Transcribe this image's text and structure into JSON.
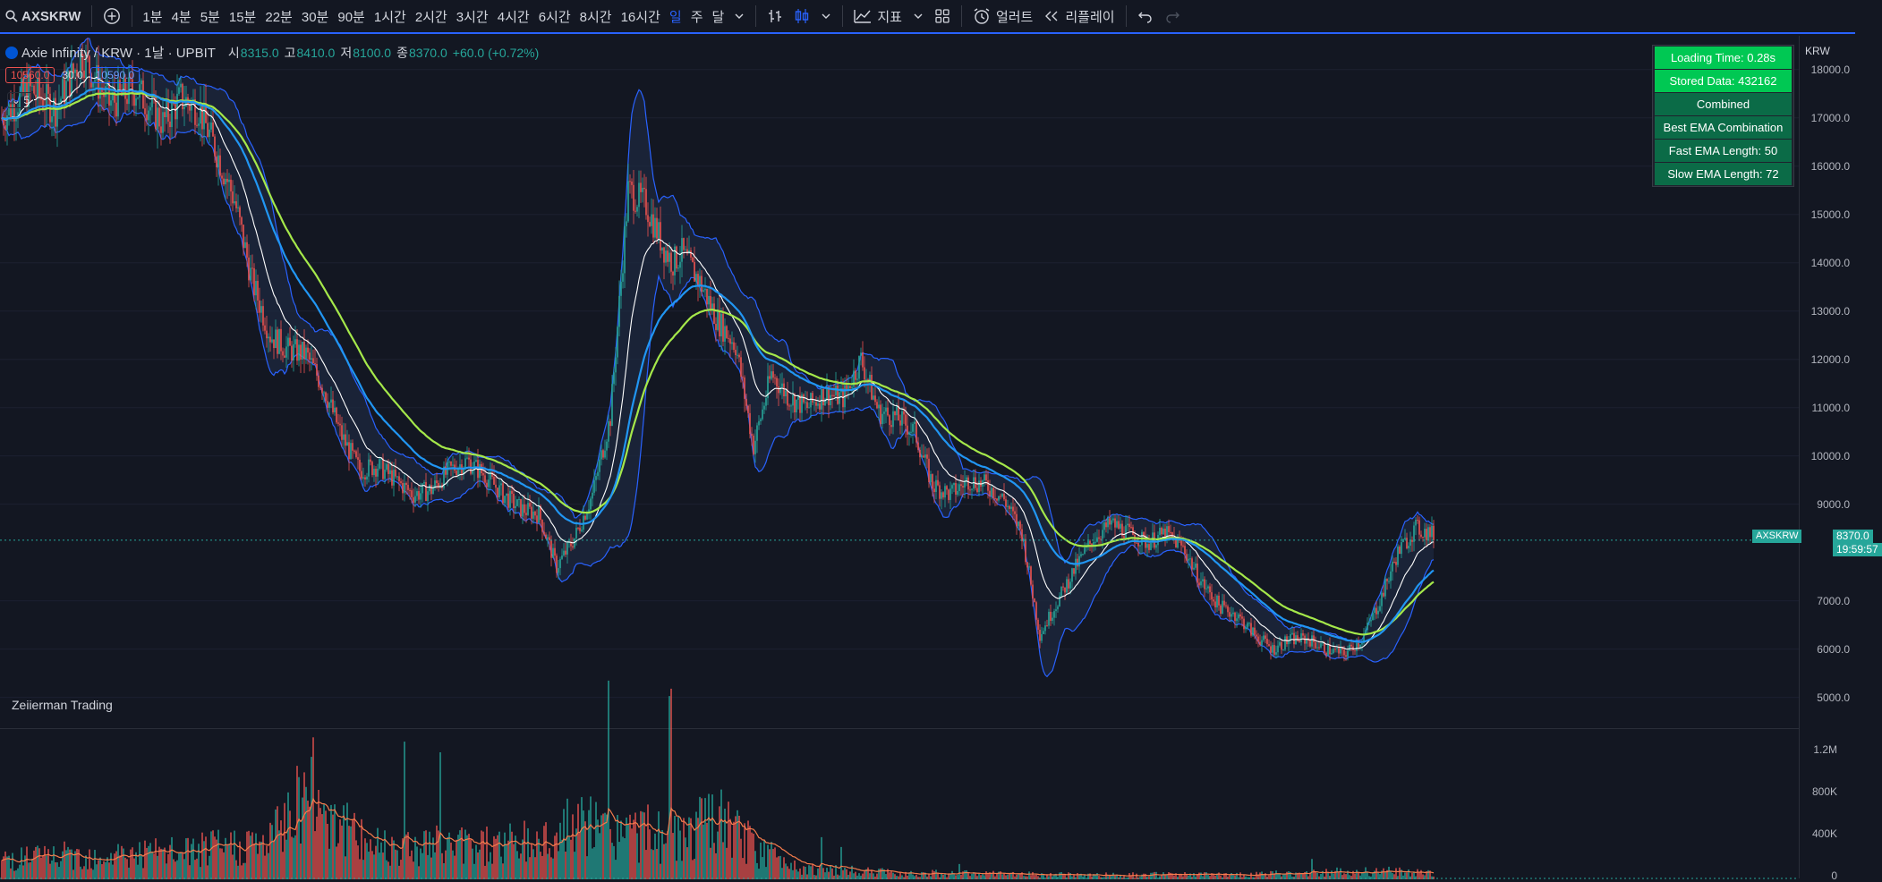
{
  "toolbar": {
    "symbol": "AXSKRW",
    "intervals": [
      "1분",
      "4분",
      "5분",
      "15분",
      "22분",
      "30분",
      "90분",
      "1시간",
      "2시간",
      "3시간",
      "4시간",
      "6시간",
      "8시간",
      "16시간",
      "일",
      "주",
      "달"
    ],
    "active_interval": "일",
    "indicators_label": "지표",
    "alert_label": "얼러트",
    "replay_label": "리플레이"
  },
  "legend": {
    "title": "Axie Infinity / KRW · 1날 · UPBIT",
    "open_label": "시",
    "open": "8315.0",
    "high_label": "고",
    "high": "8410.0",
    "low_label": "저",
    "low": "8100.0",
    "close_label": "종",
    "close": "8370.0",
    "change": "+60.0 (+0.72%)",
    "box1": "10560.0",
    "box_mid": "30.0",
    "box2": "10590.0",
    "collapse": "5"
  },
  "watermark": "Zeiierman Trading",
  "info_table": [
    {
      "text": "Loading Time: 0.28s",
      "color": "#00c853"
    },
    {
      "text": "Stored Data: 432162",
      "color": "#00c853"
    },
    {
      "text": "Combined",
      "color": "#0b6b47"
    },
    {
      "text": "Best EMA Combination",
      "color": "#0b6b47"
    },
    {
      "text": "Fast EMA Length: 50",
      "color": "#0b6b47"
    },
    {
      "text": "Slow EMA Length: 72",
      "color": "#0b6b47"
    }
  ],
  "price_scale": {
    "currency": "KRW",
    "labels": [
      "18000.0",
      "17000.0",
      "16000.0",
      "15000.0",
      "14000.0",
      "13000.0",
      "12000.0",
      "11000.0",
      "10000.0",
      "9000.0",
      "7000.0",
      "6000.0",
      "5000.0"
    ],
    "current_symbol": "AXSKRW",
    "current_price": "8370.0",
    "countdown": "19:59:57"
  },
  "volume_scale": {
    "labels": [
      "1.2M",
      "800K",
      "400K",
      "0"
    ]
  },
  "colors": {
    "up": "#26a69a",
    "down": "#ef5350",
    "accent": "#2962ff",
    "ema_fast": "#2196f3",
    "ema_slow": "#a5e84a",
    "basis": "#ffffff",
    "band": "#2962ff"
  },
  "chart_data": {
    "type": "candlestick",
    "y_range": [
      4400,
      18700
    ],
    "price_anchors": [
      [
        0,
        17000
      ],
      [
        15,
        17600
      ],
      [
        30,
        17200
      ],
      [
        45,
        18300
      ],
      [
        60,
        17300
      ],
      [
        75,
        17600
      ],
      [
        90,
        16900
      ],
      [
        100,
        17400
      ],
      [
        110,
        17200
      ],
      [
        120,
        16300
      ],
      [
        130,
        15300
      ],
      [
        140,
        13600
      ],
      [
        150,
        12500
      ],
      [
        160,
        12200
      ],
      [
        170,
        12100
      ],
      [
        180,
        11400
      ],
      [
        190,
        10400
      ],
      [
        200,
        9700
      ],
      [
        210,
        9800
      ],
      [
        220,
        9500
      ],
      [
        230,
        9200
      ],
      [
        240,
        9300
      ],
      [
        250,
        9700
      ],
      [
        260,
        9900
      ],
      [
        270,
        9600
      ],
      [
        280,
        9200
      ],
      [
        290,
        8900
      ],
      [
        300,
        8800
      ],
      [
        310,
        7700
      ],
      [
        320,
        8300
      ],
      [
        330,
        9200
      ],
      [
        340,
        10800
      ],
      [
        350,
        15500
      ],
      [
        360,
        15200
      ],
      [
        370,
        14300
      ],
      [
        375,
        14000
      ],
      [
        380,
        14200
      ],
      [
        390,
        13600
      ],
      [
        400,
        12800
      ],
      [
        410,
        12300
      ],
      [
        420,
        10200
      ],
      [
        430,
        11700
      ],
      [
        440,
        11200
      ],
      [
        450,
        11000
      ],
      [
        460,
        11300
      ],
      [
        470,
        11200
      ],
      [
        480,
        12000
      ],
      [
        490,
        10900
      ],
      [
        500,
        10800
      ],
      [
        510,
        10500
      ],
      [
        520,
        9400
      ],
      [
        530,
        9200
      ],
      [
        540,
        9500
      ],
      [
        550,
        9400
      ],
      [
        560,
        9100
      ],
      [
        570,
        8400
      ],
      [
        580,
        6300
      ],
      [
        590,
        7000
      ],
      [
        600,
        7700
      ],
      [
        610,
        8300
      ],
      [
        620,
        8600
      ],
      [
        630,
        8400
      ],
      [
        640,
        8200
      ],
      [
        650,
        8400
      ],
      [
        660,
        8100
      ],
      [
        670,
        7400
      ],
      [
        680,
        6900
      ],
      [
        690,
        6700
      ],
      [
        700,
        6300
      ],
      [
        710,
        6000
      ],
      [
        720,
        6200
      ],
      [
        730,
        6200
      ],
      [
        740,
        6000
      ],
      [
        750,
        5900
      ],
      [
        760,
        6200
      ],
      [
        770,
        7000
      ],
      [
        780,
        8000
      ],
      [
        790,
        8500
      ],
      [
        800,
        8370
      ]
    ],
    "volume_anchors": [
      [
        0,
        200000
      ],
      [
        100,
        250000
      ],
      [
        150,
        350000
      ],
      [
        170,
        900000
      ],
      [
        200,
        350000
      ],
      [
        250,
        320000
      ],
      [
        300,
        350000
      ],
      [
        320,
        500000
      ],
      [
        350,
        450000
      ],
      [
        380,
        400000
      ],
      [
        400,
        550000
      ],
      [
        420,
        300000
      ],
      [
        450,
        100000
      ],
      [
        500,
        60000
      ],
      [
        600,
        40000
      ],
      [
        700,
        45000
      ],
      [
        770,
        80000
      ],
      [
        800,
        50000
      ]
    ],
    "overlays": [
      "EMA fast (50)",
      "EMA slow (72)",
      "Bollinger bands",
      "basis"
    ]
  }
}
